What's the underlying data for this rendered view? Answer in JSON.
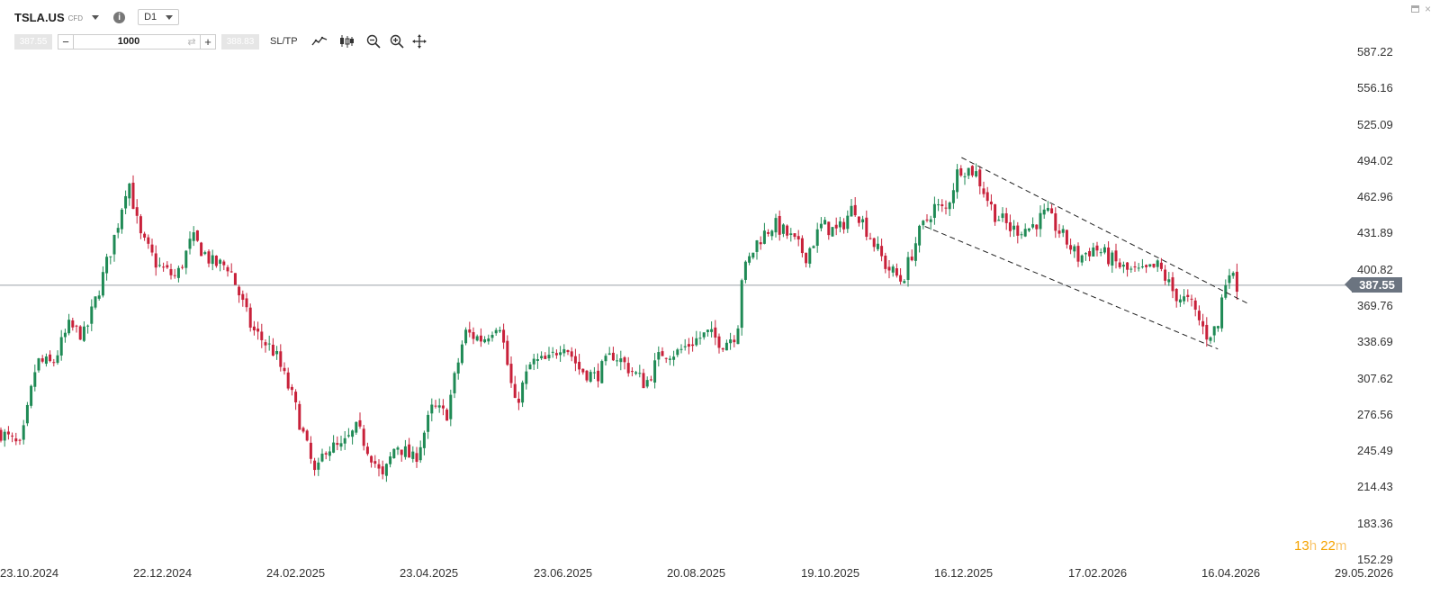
{
  "header": {
    "symbol": "TSLA.US",
    "instrument_type": "CFD",
    "timeframe": "D1",
    "info_glyph": "i"
  },
  "order": {
    "sell_price": "387.55",
    "buy_price": "388.83",
    "quantity": "1000",
    "minus": "−",
    "plus": "+",
    "swap_glyph": "⇄",
    "sltp_label": "SL/TP"
  },
  "tools": [
    "line-chart-icon",
    "candlestick-icon",
    "zoom-out-icon",
    "zoom-in-icon",
    "crosshair-icon"
  ],
  "colors": {
    "bull": "#1f8a55",
    "bear": "#c8213a",
    "price_line": "#9aa0a6",
    "accent": "#f5a300"
  },
  "price_axis": {
    "labels": [
      "587.22",
      "556.16",
      "525.09",
      "494.02",
      "462.96",
      "431.89",
      "400.82",
      "369.76",
      "338.69",
      "307.62",
      "276.56",
      "245.49",
      "214.43",
      "183.36",
      "152.29"
    ],
    "last_price": "387.55"
  },
  "date_axis": [
    "23.10.2024",
    "22.12.2024",
    "24.02.2025",
    "23.04.2025",
    "23.06.2025",
    "20.08.2025",
    "19.10.2025",
    "16.12.2025",
    "17.02.2026",
    "16.04.2026",
    "29.05.2026"
  ],
  "countdown": {
    "hours": "13",
    "h": "h",
    "minutes": "22",
    "m": "m"
  },
  "chart_data": {
    "type": "candlestick",
    "symbol": "TSLA.US",
    "timeframe": "D1",
    "y_range": [
      152.29,
      587.22
    ],
    "x_range": [
      "23.10.2024",
      "29.05.2026"
    ],
    "last_price": 387.55,
    "close_path": [
      [
        "2024-10-23",
        262
      ],
      [
        "2024-11-01",
        248
      ],
      [
        "2024-11-08",
        322
      ],
      [
        "2024-11-15",
        320
      ],
      [
        "2024-11-22",
        352
      ],
      [
        "2024-11-29",
        345
      ],
      [
        "2024-12-06",
        389
      ],
      [
        "2024-12-13",
        436
      ],
      [
        "2024-12-18",
        480
      ],
      [
        "2024-12-23",
        430
      ],
      [
        "2024-12-31",
        404
      ],
      [
        "2025-01-08",
        394
      ],
      [
        "2025-01-15",
        428
      ],
      [
        "2025-01-24",
        406
      ],
      [
        "2025-01-31",
        404
      ],
      [
        "2025-02-10",
        350
      ],
      [
        "2025-02-20",
        330
      ],
      [
        "2025-02-28",
        290
      ],
      [
        "2025-03-10",
        222
      ],
      [
        "2025-03-14",
        249
      ],
      [
        "2025-03-21",
        248
      ],
      [
        "2025-03-28",
        265
      ],
      [
        "2025-04-04",
        239
      ],
      [
        "2025-04-08",
        221
      ],
      [
        "2025-04-14",
        252
      ],
      [
        "2025-04-22",
        237
      ],
      [
        "2025-04-30",
        283
      ],
      [
        "2025-05-06",
        276
      ],
      [
        "2025-05-14",
        347
      ],
      [
        "2025-05-22",
        341
      ],
      [
        "2025-05-29",
        358
      ],
      [
        "2025-06-05",
        284
      ],
      [
        "2025-06-12",
        321
      ],
      [
        "2025-06-20",
        323
      ],
      [
        "2025-06-26",
        340
      ],
      [
        "2025-07-03",
        316
      ],
      [
        "2025-07-10",
        309
      ],
      [
        "2025-07-18",
        329
      ],
      [
        "2025-07-25",
        316
      ],
      [
        "2025-08-01",
        303
      ],
      [
        "2025-08-08",
        330
      ],
      [
        "2025-08-15",
        330
      ],
      [
        "2025-08-22",
        340
      ],
      [
        "2025-08-28",
        346
      ],
      [
        "2025-09-04",
        338
      ],
      [
        "2025-09-10",
        347
      ],
      [
        "2025-09-12",
        395
      ],
      [
        "2025-09-19",
        426
      ],
      [
        "2025-09-26",
        440
      ],
      [
        "2025-10-03",
        429
      ],
      [
        "2025-10-10",
        413
      ],
      [
        "2025-10-17",
        439
      ],
      [
        "2025-10-24",
        433
      ],
      [
        "2025-10-31",
        456
      ],
      [
        "2025-11-07",
        430
      ],
      [
        "2025-11-14",
        404
      ],
      [
        "2025-11-21",
        391
      ],
      [
        "2025-11-28",
        430
      ],
      [
        "2025-12-05",
        455
      ],
      [
        "2025-12-10",
        451
      ],
      [
        "2025-12-16",
        489
      ],
      [
        "2025-12-23",
        485
      ],
      [
        "2025-12-31",
        450
      ],
      [
        "2026-01-08",
        435
      ],
      [
        "2026-01-16",
        437
      ],
      [
        "2026-01-23",
        449
      ],
      [
        "2026-01-30",
        430
      ],
      [
        "2026-02-06",
        411
      ],
      [
        "2026-02-13",
        420
      ],
      [
        "2026-02-20",
        410
      ],
      [
        "2026-02-27",
        400
      ],
      [
        "2026-03-06",
        398
      ],
      [
        "2026-03-13",
        404
      ],
      [
        "2026-03-20",
        380
      ],
      [
        "2026-03-27",
        372
      ],
      [
        "2026-04-03",
        345
      ],
      [
        "2026-04-08",
        352
      ],
      [
        "2026-04-10",
        380
      ],
      [
        "2026-04-13",
        403
      ],
      [
        "2026-04-15",
        390
      ],
      [
        "2026-04-17",
        387.55
      ]
    ],
    "trend_channel": {
      "upper": [
        [
          "2025-12-17",
          497
        ],
        [
          "2026-04-21",
          372
        ]
      ],
      "lower": [
        [
          "2025-12-01",
          438
        ],
        [
          "2026-04-08",
          333
        ]
      ]
    }
  }
}
